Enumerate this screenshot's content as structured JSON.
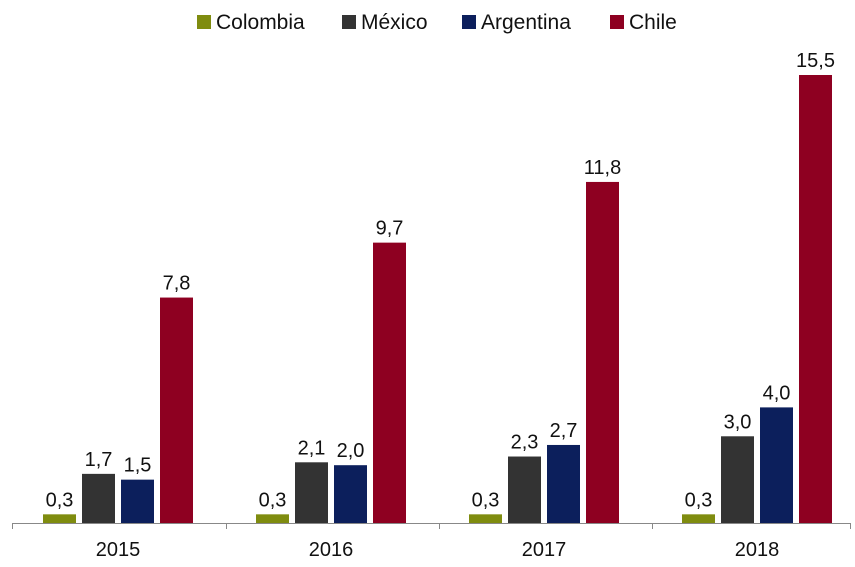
{
  "chart_data": {
    "type": "bar",
    "categories": [
      "2015",
      "2016",
      "2017",
      "2018"
    ],
    "series": [
      {
        "name": "Colombia",
        "color": "#7f8c0f",
        "values": [
          0.3,
          0.3,
          0.3,
          0.3
        ],
        "labels": [
          "0,3",
          "0,3",
          "0,3",
          "0,3"
        ]
      },
      {
        "name": "México",
        "color": "#333333",
        "values": [
          1.7,
          2.1,
          2.3,
          3.0
        ],
        "labels": [
          "1,7",
          "2,1",
          "2,3",
          "3,0"
        ]
      },
      {
        "name": "Argentina",
        "color": "#0c1f5c",
        "values": [
          1.5,
          2.0,
          2.7,
          4.0
        ],
        "labels": [
          "1,5",
          "2,0",
          "2,7",
          "4,0"
        ]
      },
      {
        "name": "Chile",
        "color": "#8e0021",
        "values": [
          7.8,
          9.7,
          11.8,
          15.5
        ],
        "labels": [
          "7,8",
          "9,7",
          "11,8",
          "15,5"
        ]
      }
    ],
    "title": "",
    "xlabel": "",
    "ylabel": "",
    "ylim": [
      0,
      15.5
    ],
    "grid": false,
    "legend": "top-center"
  }
}
